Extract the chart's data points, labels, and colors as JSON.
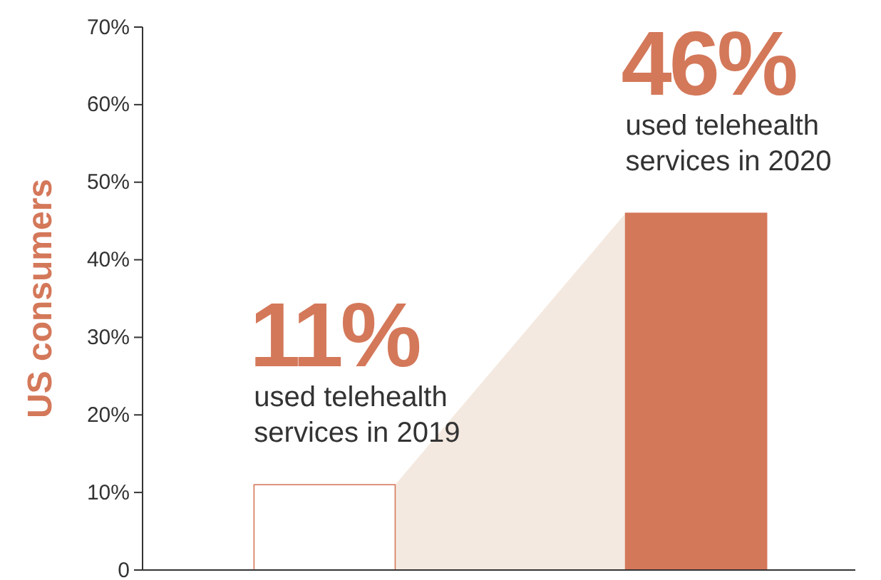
{
  "chart_data": {
    "type": "bar",
    "ylabel": "US consumers",
    "categories": [
      null,
      null
    ],
    "values": [
      11,
      46
    ],
    "colors": [
      "#ffffff",
      "#d4785a"
    ],
    "value_labels": [
      "11%",
      "46%"
    ],
    "annotations": [
      "used telehealth services in 2019",
      "used telehealth services in 2020"
    ],
    "ylim": [
      0,
      70
    ],
    "yticks": [
      {
        "value": 0,
        "label": "0"
      },
      {
        "value": 10,
        "label": "10%"
      },
      {
        "value": 20,
        "label": "20%"
      },
      {
        "value": 30,
        "label": "30%"
      },
      {
        "value": 40,
        "label": "40%"
      },
      {
        "value": 50,
        "label": "50%"
      },
      {
        "value": 60,
        "label": "60%"
      },
      {
        "value": 70,
        "label": "70%"
      }
    ],
    "grid": false
  }
}
